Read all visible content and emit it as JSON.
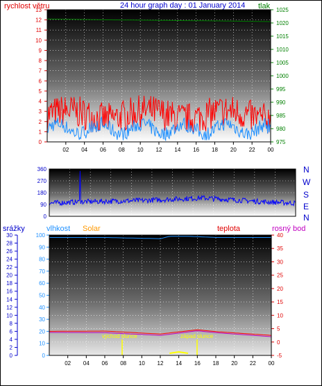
{
  "header": {
    "wind_label": "rychlost větru",
    "title": "24 hour graph day : 01 January 2014",
    "pressure_label": "tlak"
  },
  "panel2": {
    "compass": [
      "N",
      "W",
      "S",
      "E",
      "N"
    ]
  },
  "panel3": {
    "rain_label": "srážky",
    "humidity_label": "vlhkost",
    "solar_label": "Solar",
    "temp_label": "teplota",
    "dew_label": "rosný bod",
    "sunrise_label": "východ slunce",
    "sunset_label": "západ slunce"
  },
  "colors": {
    "wind_gust": "#ff0000",
    "wind_avg": "#1e90ff",
    "pressure": "#008000",
    "direction": "#0000ff",
    "humidity": "#1e90ff",
    "temp": "#ff0000",
    "dew": "#c000c0",
    "solar": "#ffff00"
  },
  "chart_data": [
    {
      "type": "line",
      "x_ticks": [
        "02",
        "04",
        "06",
        "08",
        "10",
        "12",
        "14",
        "16",
        "18",
        "20",
        "22",
        "00"
      ],
      "y_left": {
        "label": "rychlost větru",
        "ticks": [
          0,
          1,
          2,
          3,
          4,
          5,
          6,
          7,
          8,
          9,
          10,
          11,
          12,
          13
        ],
        "ylim": [
          0,
          13
        ]
      },
      "y_right": {
        "label": "tlak",
        "ticks": [
          975,
          980,
          985,
          990,
          995,
          1000,
          1005,
          1010,
          1015,
          1020,
          1025
        ],
        "ylim": [
          975,
          1025
        ]
      },
      "series": [
        {
          "name": "rychlost větru",
          "axis": "left",
          "approx_range": [
            0,
            5.8
          ],
          "typical": 2.5
        },
        {
          "name": "tlak",
          "axis": "right",
          "x": [
            "00",
            "06",
            "12",
            "18",
            "00"
          ],
          "values": [
            1021.5,
            1021.2,
            1021.0,
            1020.8,
            1020.5
          ]
        }
      ],
      "grid": true
    },
    {
      "type": "line",
      "x_ticks": [
        "02",
        "04",
        "06",
        "08",
        "10",
        "12",
        "14",
        "16",
        "18",
        "20",
        "22",
        "00"
      ],
      "y_left": {
        "ticks": [
          0,
          90,
          180,
          270,
          360
        ],
        "ylim": [
          0,
          360
        ]
      },
      "series": [
        {
          "name": "wind direction",
          "x": [
            "00",
            "03",
            "06",
            "09",
            "12",
            "15",
            "18",
            "21",
            "00"
          ],
          "values": [
            100,
            110,
            115,
            120,
            130,
            140,
            125,
            110,
            100
          ],
          "spike": {
            "x": "03",
            "value": 345
          }
        }
      ],
      "grid": true
    },
    {
      "type": "line",
      "x_ticks": [
        "02",
        "04",
        "06",
        "08",
        "10",
        "12",
        "14",
        "16",
        "18",
        "20",
        "22",
        "00"
      ],
      "y_left_rain": {
        "label": "srážky",
        "ticks": [
          0,
          2,
          4,
          6,
          8,
          10,
          12,
          14,
          16,
          18,
          20,
          22,
          24,
          26,
          28,
          30
        ],
        "ylim": [
          0,
          30
        ]
      },
      "y_left_humidity": {
        "label": "vlhkost",
        "ticks": [
          0,
          10,
          20,
          30,
          40,
          50,
          60,
          70,
          80,
          90,
          100
        ],
        "ylim": [
          0,
          100
        ]
      },
      "y_right": {
        "label": "teplota",
        "ticks": [
          -5,
          0,
          5,
          10,
          15,
          20,
          25,
          30,
          35,
          40
        ],
        "ylim": [
          -5,
          40
        ]
      },
      "series": [
        {
          "name": "vlhkost",
          "x": [
            "00",
            "06",
            "12",
            "13",
            "15",
            "18",
            "00"
          ],
          "values": [
            98,
            98,
            97,
            99,
            99,
            98,
            98
          ]
        },
        {
          "name": "teplota",
          "x": [
            "00",
            "06",
            "12",
            "16",
            "18",
            "00"
          ],
          "values": [
            4.0,
            4.1,
            3.0,
            4.6,
            3.9,
            2.5
          ]
        },
        {
          "name": "rosný bod",
          "x": [
            "00",
            "06",
            "12",
            "16",
            "18",
            "00"
          ],
          "values": [
            3.6,
            3.5,
            2.5,
            4.2,
            3.5,
            2.0
          ]
        },
        {
          "name": "Solar",
          "x": [
            "13",
            "14",
            "15"
          ],
          "values": [
            3,
            5,
            3
          ]
        }
      ],
      "annotations": [
        {
          "text": "východ slunce",
          "x": "07:55"
        },
        {
          "text": "západ slunce",
          "x": "16:05"
        }
      ],
      "grid": true
    }
  ]
}
